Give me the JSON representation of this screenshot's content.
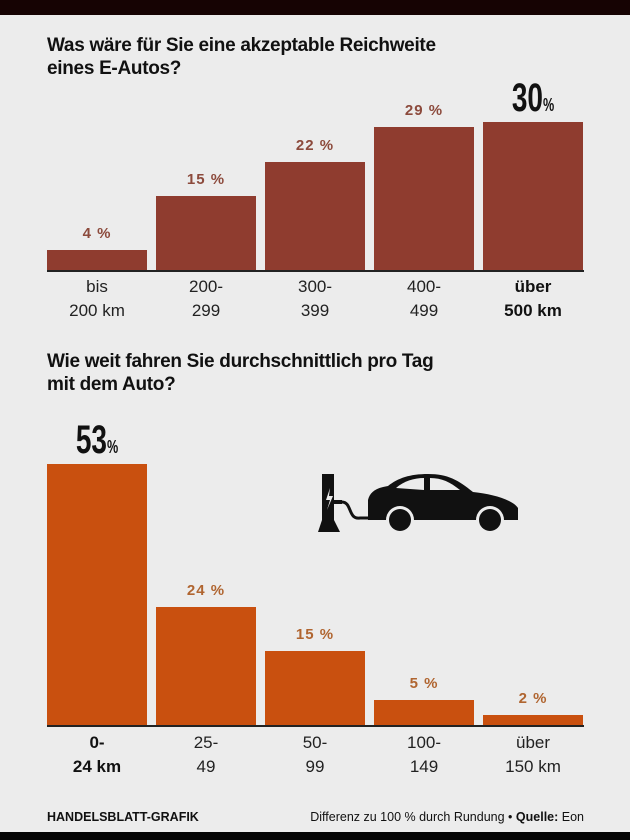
{
  "chart_data": [
    {
      "type": "bar",
      "title": "Was wäre für Sie eine akzeptable Reichweite eines E-Autos?",
      "title_lines": [
        "Was wäre für Sie eine akzeptable Reichweite",
        "eines E-Autos?"
      ],
      "categories": [
        [
          "bis",
          "200 km"
        ],
        [
          "200-",
          "299"
        ],
        [
          "300-",
          "399"
        ],
        [
          "400-",
          "499"
        ],
        [
          "über",
          "500 km"
        ]
      ],
      "values": [
        4,
        15,
        22,
        29,
        30
      ],
      "labels": [
        "4 %",
        "15 %",
        "22 %",
        "29 %",
        "30"
      ],
      "highlight_index": 4,
      "unit": "%",
      "ylim": [
        0,
        30
      ],
      "bar_color": "#8f3c2f",
      "label_color": "#8c4a3c"
    },
    {
      "type": "bar",
      "title": "Wie weit fahren Sie durchschnittlich pro Tag mit dem Auto?",
      "title_lines": [
        "Wie weit fahren Sie durchschnittlich pro Tag",
        "mit dem Auto?"
      ],
      "categories": [
        [
          "0-",
          "24 km"
        ],
        [
          "25-",
          "49"
        ],
        [
          "50-",
          "99"
        ],
        [
          "100-",
          "149"
        ],
        [
          "über",
          "150 km"
        ]
      ],
      "values": [
        53,
        24,
        15,
        5,
        2
      ],
      "labels": [
        "53",
        "24 %",
        "15 %",
        "5 %",
        "2 %"
      ],
      "highlight_index": 0,
      "unit": "%",
      "ylim": [
        0,
        53
      ],
      "bar_color": "#c9500f",
      "label_color": "#b06530"
    }
  ],
  "footer": {
    "credit": "HANDELSBLATT-GRAFIK",
    "note": "Differenz zu 100 % durch Rundung • ",
    "source_label": "Quelle:",
    "source": " Eon"
  },
  "icons": [
    "charging-station-icon",
    "electric-car-icon"
  ]
}
